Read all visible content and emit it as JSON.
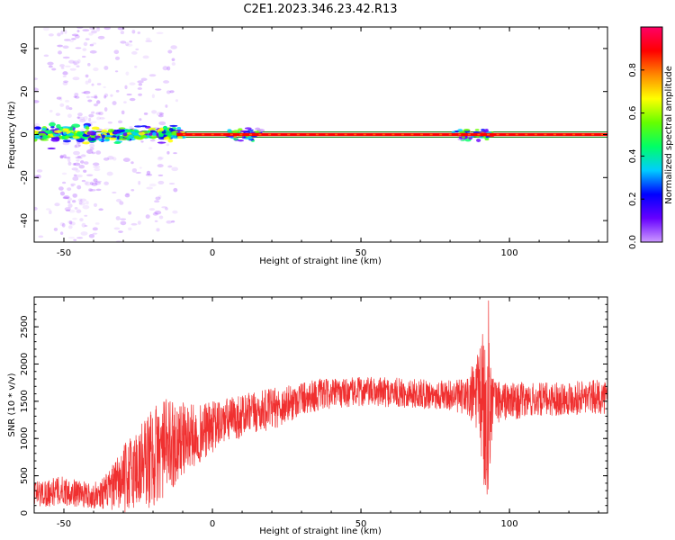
{
  "figure": {
    "title": "C2E1.2023.346.23.42.R13"
  },
  "chart_data": [
    {
      "type": "heatmap",
      "xlabel": "Height of straight line (km)",
      "ylabel": "Frequency (Hz)",
      "xlim": [
        -60,
        133
      ],
      "ylim": [
        -50,
        50
      ],
      "xticks": [
        -50,
        0,
        50,
        100
      ],
      "yticks": [
        -40,
        -20,
        0,
        20,
        40
      ],
      "colorbar": {
        "label": "Normalized spectral amplitude",
        "range": [
          0,
          1
        ],
        "ticks": [
          "0.0",
          "0.2",
          "0.4",
          "0.6",
          "0.8"
        ],
        "colors": [
          "#cc99ff",
          "#6600ff",
          "#0000ff",
          "#00ccff",
          "#00ff66",
          "#66ff00",
          "#ffff00",
          "#ff8800",
          "#ff0000",
          "#ff0066"
        ]
      },
      "features": {
        "main_line_frequency_hz": 0,
        "main_line_colors": [
          "#ff0000",
          "#ff8800"
        ],
        "band_color": "#007700",
        "noise_x_range": [
          -60,
          -12
        ],
        "noise_color": "#9933ff",
        "blobs": [
          {
            "x": 8,
            "amplitude": 0.9
          },
          {
            "x": 13,
            "amplitude": 0.8
          },
          {
            "x": 85,
            "amplitude": 0.8
          },
          {
            "x": 91,
            "amplitude": 0.9
          }
        ]
      }
    },
    {
      "type": "line",
      "xlabel": "Height of straight line (km)",
      "ylabel": "SNR (10 * v/v)",
      "xlim": [
        -60,
        133
      ],
      "ylim": [
        0,
        2900
      ],
      "xticks": [
        -50,
        0,
        50,
        100
      ],
      "yticks": [
        0,
        500,
        1000,
        1500,
        2000,
        2500
      ],
      "color": "#f03030",
      "envelope": {
        "x": [
          -60,
          -50,
          -45,
          -40,
          -35,
          -30,
          -25,
          -20,
          -15,
          -10,
          -5,
          0,
          5,
          10,
          15,
          20,
          25,
          30,
          35,
          40,
          50,
          60,
          70,
          80,
          85,
          90,
          91,
          92,
          93,
          94,
          95,
          100,
          110,
          120,
          133
        ],
        "mean": [
          250,
          300,
          260,
          230,
          300,
          450,
          620,
          750,
          900,
          1000,
          1050,
          1150,
          1250,
          1300,
          1350,
          1400,
          1450,
          1550,
          1580,
          1600,
          1630,
          1620,
          1600,
          1580,
          1550,
          1600,
          1500,
          1200,
          1600,
          1500,
          1500,
          1500,
          1520,
          1550,
          1560
        ],
        "spread": [
          180,
          200,
          180,
          170,
          250,
          450,
          600,
          700,
          650,
          500,
          400,
          350,
          300,
          300,
          280,
          280,
          260,
          230,
          220,
          200,
          200,
          200,
          200,
          200,
          250,
          600,
          1300,
          1100,
          1300,
          600,
          300,
          250,
          230,
          230,
          230
        ]
      }
    }
  ]
}
